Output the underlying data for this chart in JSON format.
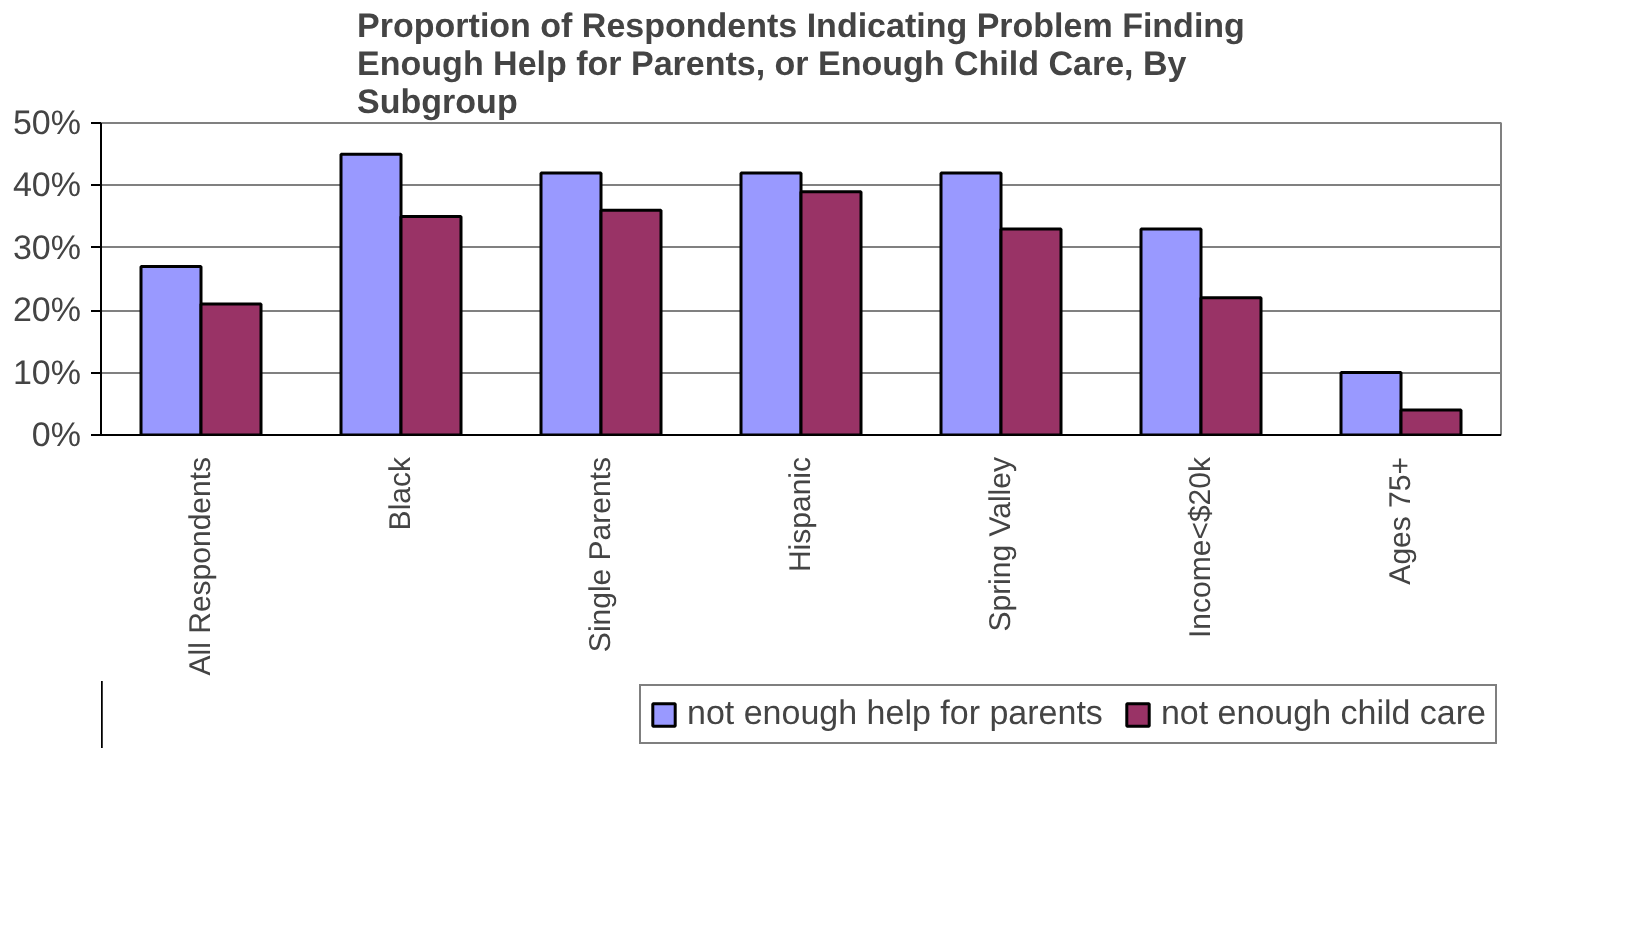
{
  "chart_data": {
    "type": "bar",
    "title": "Proportion of Respondents Indicating Problem Finding Enough Help for Parents, or Enough Child Care, By Subgroup",
    "categories": [
      "All Respondents",
      "Black",
      "Single Parents",
      "Hispanic",
      "Spring Valley",
      "Income<$20k",
      "Ages 75+"
    ],
    "series": [
      {
        "name": "not enough help for parents",
        "color": "#9999ff",
        "values": [
          27,
          45,
          42,
          42,
          42,
          33,
          10
        ]
      },
      {
        "name": "not enough child care",
        "color": "#993366",
        "values": [
          21,
          35,
          36,
          39,
          33,
          22,
          4
        ]
      }
    ],
    "ylim": [
      0,
      50
    ],
    "yticks": [
      {
        "value": 0,
        "label": "0%"
      },
      {
        "value": 10,
        "label": "10%"
      },
      {
        "value": 20,
        "label": "20%"
      },
      {
        "value": 30,
        "label": "30%"
      },
      {
        "value": 40,
        "label": "40%"
      },
      {
        "value": 50,
        "label": "50%"
      }
    ],
    "grid": "y",
    "legend": "bottom"
  }
}
